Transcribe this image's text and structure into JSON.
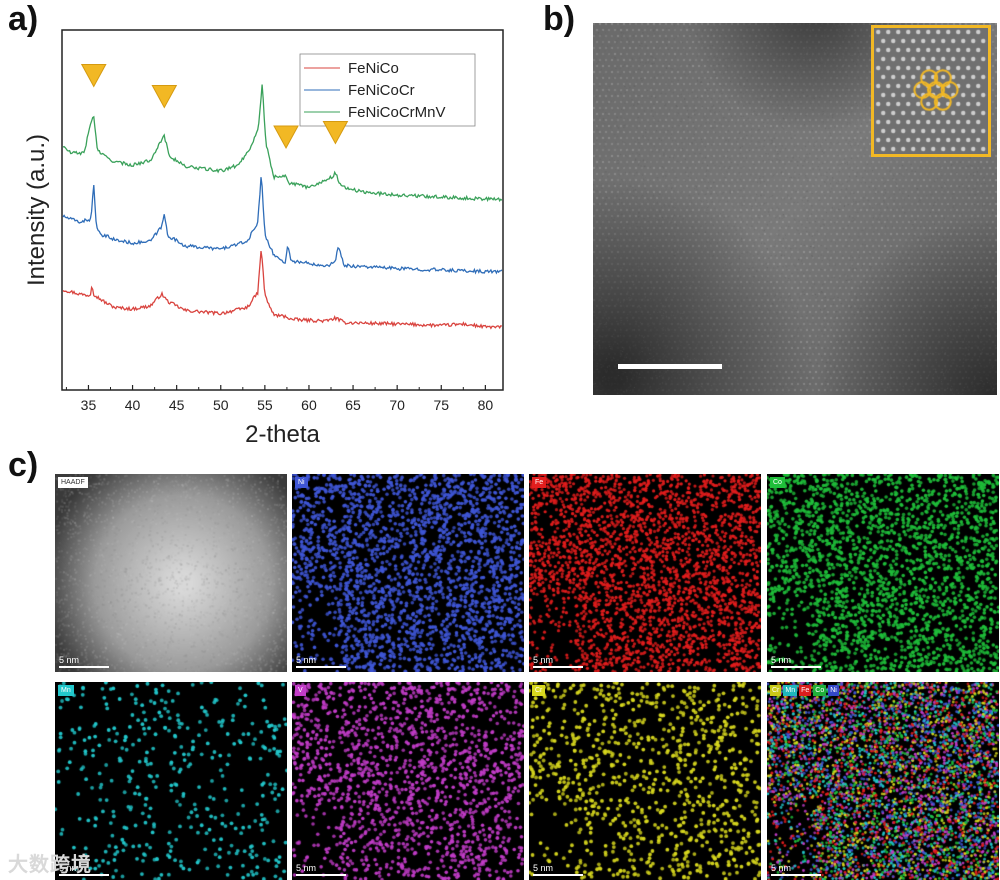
{
  "panels": {
    "a": "a)",
    "b": "b)",
    "c": "c)"
  },
  "chart_data": {
    "type": "line",
    "xlabel": "2-theta",
    "ylabel": "Intensity (a.u.)",
    "xlim": [
      32,
      82
    ],
    "x_ticks": [
      35,
      40,
      45,
      50,
      55,
      60,
      65,
      70,
      75,
      80
    ],
    "legend_position": "top-right",
    "marker_positions_2theta": [
      35.6,
      43.6,
      57.4,
      63.0
    ],
    "series": [
      {
        "name": "FeNiCo",
        "color": "#d9443f",
        "x": [
          32,
          34,
          35.2,
          35.4,
          35.6,
          36,
          37,
          38,
          40,
          42,
          43.3,
          44,
          46,
          50,
          53,
          54.2,
          54.6,
          55,
          56,
          57.4,
          58,
          62,
          63,
          64,
          70,
          75,
          77.5,
          80,
          82
        ],
        "y": [
          6.7,
          6.4,
          6.3,
          7.1,
          6.4,
          6.2,
          5.8,
          5.5,
          5.4,
          5.6,
          6.4,
          5.9,
          5.3,
          5.1,
          5.5,
          6.5,
          9.5,
          6.3,
          5.0,
          4.9,
          4.7,
          4.6,
          4.8,
          4.5,
          4.4,
          4.3,
          4.4,
          4.2,
          4.2
        ]
      },
      {
        "name": "FeNiCoCr",
        "color": "#2f6db8",
        "x": [
          32,
          34,
          35.3,
          35.6,
          35.9,
          36.4,
          37.4,
          38,
          40,
          42,
          43.3,
          43.6,
          44,
          46,
          50,
          53,
          54.2,
          54.6,
          55,
          56,
          57.3,
          57.6,
          58,
          62,
          63,
          63.3,
          64,
          70,
          75,
          80,
          82
        ],
        "y": [
          11.6,
          11.2,
          11.4,
          13.8,
          10.8,
          10.3,
          10.2,
          10.0,
          9.8,
          9.9,
          10.9,
          11.7,
          10.3,
          9.6,
          9.4,
          9.9,
          11.2,
          14.4,
          10.4,
          9.0,
          8.5,
          9.6,
          8.6,
          8.3,
          8.5,
          9.6,
          8.3,
          8.1,
          8.0,
          7.9,
          7.9
        ]
      },
      {
        "name": "FeNiCoCrMnV",
        "color": "#3aa15a",
        "x": [
          32,
          33,
          34.5,
          35.3,
          35.6,
          36,
          36.8,
          38,
          40,
          42,
          43.2,
          43.6,
          44.2,
          46,
          50,
          52,
          53.4,
          54.3,
          54.7,
          55.1,
          56,
          57.3,
          57.8,
          60,
          62.6,
          63,
          63.6,
          66,
          70,
          77.5,
          82
        ],
        "y": [
          16.3,
          15.8,
          15.8,
          17.9,
          18.3,
          16.0,
          15.6,
          15.2,
          15.0,
          15.3,
          16.6,
          16.9,
          15.6,
          14.9,
          14.6,
          15.0,
          16.2,
          17.6,
          20.5,
          16.5,
          14.2,
          14.3,
          13.8,
          13.5,
          14.2,
          14.5,
          13.6,
          13.2,
          13.0,
          12.8,
          12.7
        ]
      }
    ]
  },
  "tem": {
    "inset_color": "#f2b824"
  },
  "maps": [
    {
      "label": "HAADF",
      "scale": "5 nm",
      "color": "#cccccc"
    },
    {
      "label": "Ni",
      "scale": "5 nm",
      "color": "#3f56d6"
    },
    {
      "label": "Fe",
      "scale": "5 nm",
      "color": "#e31d1d"
    },
    {
      "label": "Co",
      "scale": "5 nm",
      "color": "#1fbf3a"
    },
    {
      "label": "Mn",
      "scale": "5 nm",
      "color": "#22c8cc"
    },
    {
      "label": "V",
      "scale": "5 nm",
      "color": "#c23cc8"
    },
    {
      "label": "Cr",
      "scale": "5 nm",
      "color": "#d8d81e"
    },
    {
      "label": "",
      "scale": "5 nm",
      "color": "#ffffff",
      "overlay_tags": [
        {
          "text": "Cr",
          "color": "#c9c918"
        },
        {
          "text": "Mn",
          "color": "#1fb7bb"
        },
        {
          "text": "Fe",
          "color": "#d91e1e"
        },
        {
          "text": "Co",
          "color": "#1faf3a"
        },
        {
          "text": "Ni",
          "color": "#3348c8"
        }
      ]
    }
  ],
  "watermark": "大数跨境"
}
